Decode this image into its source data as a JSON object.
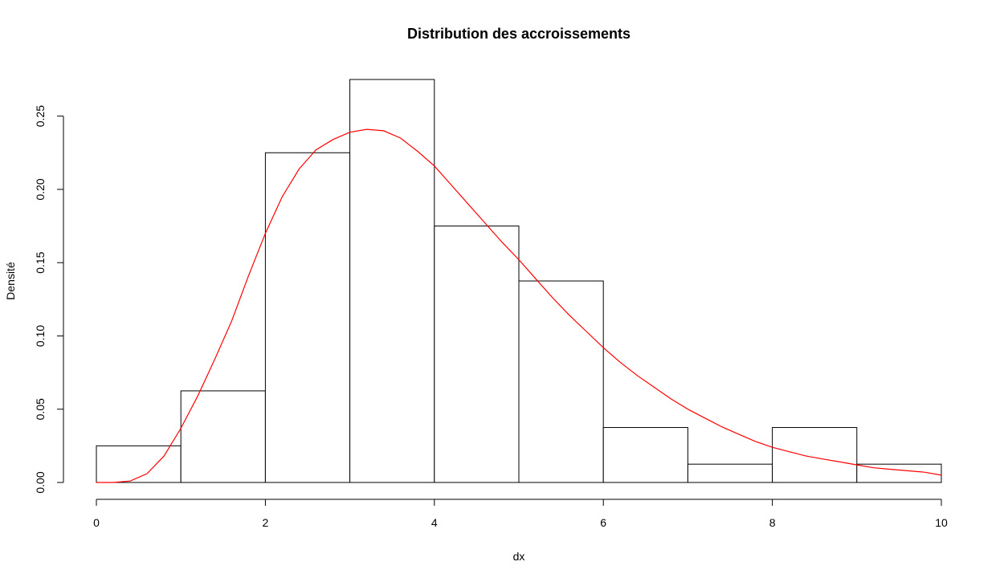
{
  "chart_data": {
    "type": "bar",
    "title": "Distribution des accroissements",
    "xlabel": "dx",
    "ylabel": "Densité",
    "xlim": [
      0,
      10
    ],
    "ylim": [
      0,
      0.275
    ],
    "grid": false,
    "bar_fill": "#ffffff",
    "bar_stroke": "#000000",
    "curve_color": "#ff0000",
    "bins": [
      {
        "x0": 0,
        "x1": 1,
        "value": 0.025
      },
      {
        "x0": 1,
        "x1": 2,
        "value": 0.0625
      },
      {
        "x0": 2,
        "x1": 3,
        "value": 0.225
      },
      {
        "x0": 3,
        "x1": 4,
        "value": 0.275
      },
      {
        "x0": 4,
        "x1": 5,
        "value": 0.175
      },
      {
        "x0": 5,
        "x1": 6,
        "value": 0.1375
      },
      {
        "x0": 6,
        "x1": 7,
        "value": 0.0375
      },
      {
        "x0": 7,
        "x1": 8,
        "value": 0.0125
      },
      {
        "x0": 8,
        "x1": 9,
        "value": 0.0375
      },
      {
        "x0": 9,
        "x1": 10,
        "value": 0.0125
      }
    ],
    "x_ticks": [
      {
        "value": 0,
        "label": "0"
      },
      {
        "value": 2,
        "label": "2"
      },
      {
        "value": 4,
        "label": "4"
      },
      {
        "value": 6,
        "label": "6"
      },
      {
        "value": 8,
        "label": "8"
      },
      {
        "value": 10,
        "label": "10"
      }
    ],
    "y_ticks": [
      {
        "value": 0,
        "label": "0.00"
      },
      {
        "value": 0.05,
        "label": "0.05"
      },
      {
        "value": 0.1,
        "label": "0.10"
      },
      {
        "value": 0.15,
        "label": "0.15"
      },
      {
        "value": 0.2,
        "label": "0.20"
      },
      {
        "value": 0.25,
        "label": "0.25"
      }
    ],
    "curve": {
      "x": [
        0,
        0.2,
        0.4,
        0.6,
        0.8,
        1.0,
        1.2,
        1.4,
        1.6,
        1.8,
        2.0,
        2.2,
        2.4,
        2.6,
        2.8,
        3.0,
        3.2,
        3.4,
        3.6,
        3.8,
        4.0,
        4.2,
        4.4,
        4.6,
        4.8,
        5.0,
        5.2,
        5.4,
        5.6,
        5.8,
        6.0,
        6.2,
        6.4,
        6.6,
        6.8,
        7.0,
        7.2,
        7.4,
        7.6,
        7.8,
        8.0,
        8.2,
        8.4,
        8.6,
        8.8,
        9.0,
        9.2,
        9.4,
        9.6,
        9.8,
        10.0
      ],
      "y": [
        0,
        0,
        0.001,
        0.006,
        0.018,
        0.037,
        0.059,
        0.084,
        0.11,
        0.141,
        0.17,
        0.195,
        0.214,
        0.227,
        0.234,
        0.239,
        0.241,
        0.24,
        0.235,
        0.226,
        0.216,
        0.203,
        0.19,
        0.177,
        0.164,
        0.152,
        0.139,
        0.126,
        0.114,
        0.103,
        0.092,
        0.082,
        0.073,
        0.065,
        0.057,
        0.05,
        0.044,
        0.038,
        0.033,
        0.028,
        0.024,
        0.021,
        0.018,
        0.016,
        0.014,
        0.012,
        0.01,
        0.009,
        0.008,
        0.007,
        0.005
      ]
    }
  }
}
